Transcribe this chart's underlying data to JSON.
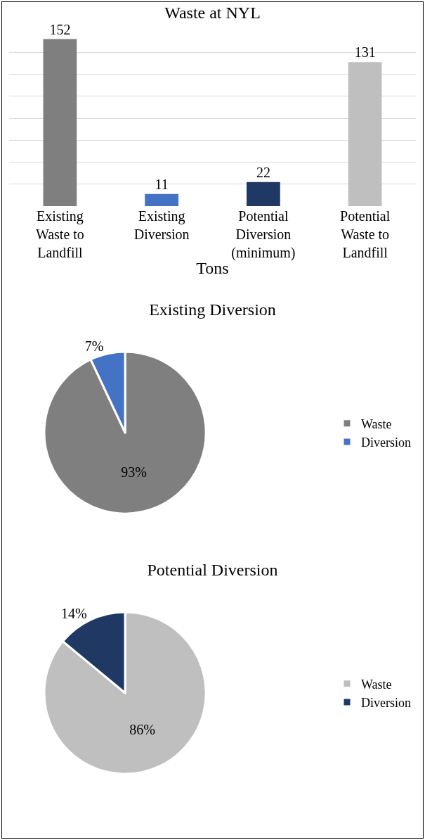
{
  "chart_data": [
    {
      "type": "bar",
      "title": "Waste at NYL",
      "xlabel": "Tons",
      "categories": [
        "Existing\nWaste to\nLandfill",
        "Existing\nDiversion",
        "Potential\nDiversion\n(minimum)",
        "Potential\nWaste to\nLandfill"
      ],
      "values": [
        152,
        11,
        22,
        131
      ],
      "colors": [
        "#7f7f7f",
        "#4472c4",
        "#203864",
        "#bfbfbf"
      ],
      "grid": "y",
      "tick_labels": "x",
      "data_labels": true,
      "legend": false
    },
    {
      "type": "pie",
      "title": "Existing Diversion",
      "categories": [
        "Waste",
        "Diversion"
      ],
      "values": [
        93,
        7
      ],
      "colors": [
        "#7f7f7f",
        "#4472c4"
      ],
      "value_labels": [
        "93%",
        "7%"
      ],
      "legend": "right"
    },
    {
      "type": "pie",
      "title": "Potential Diversion",
      "categories": [
        "Waste",
        "Diversion"
      ],
      "values": [
        86,
        14
      ],
      "colors": [
        "#bfbfbf",
        "#203864"
      ],
      "value_labels": [
        "86%",
        "14%"
      ],
      "legend": "right"
    }
  ]
}
